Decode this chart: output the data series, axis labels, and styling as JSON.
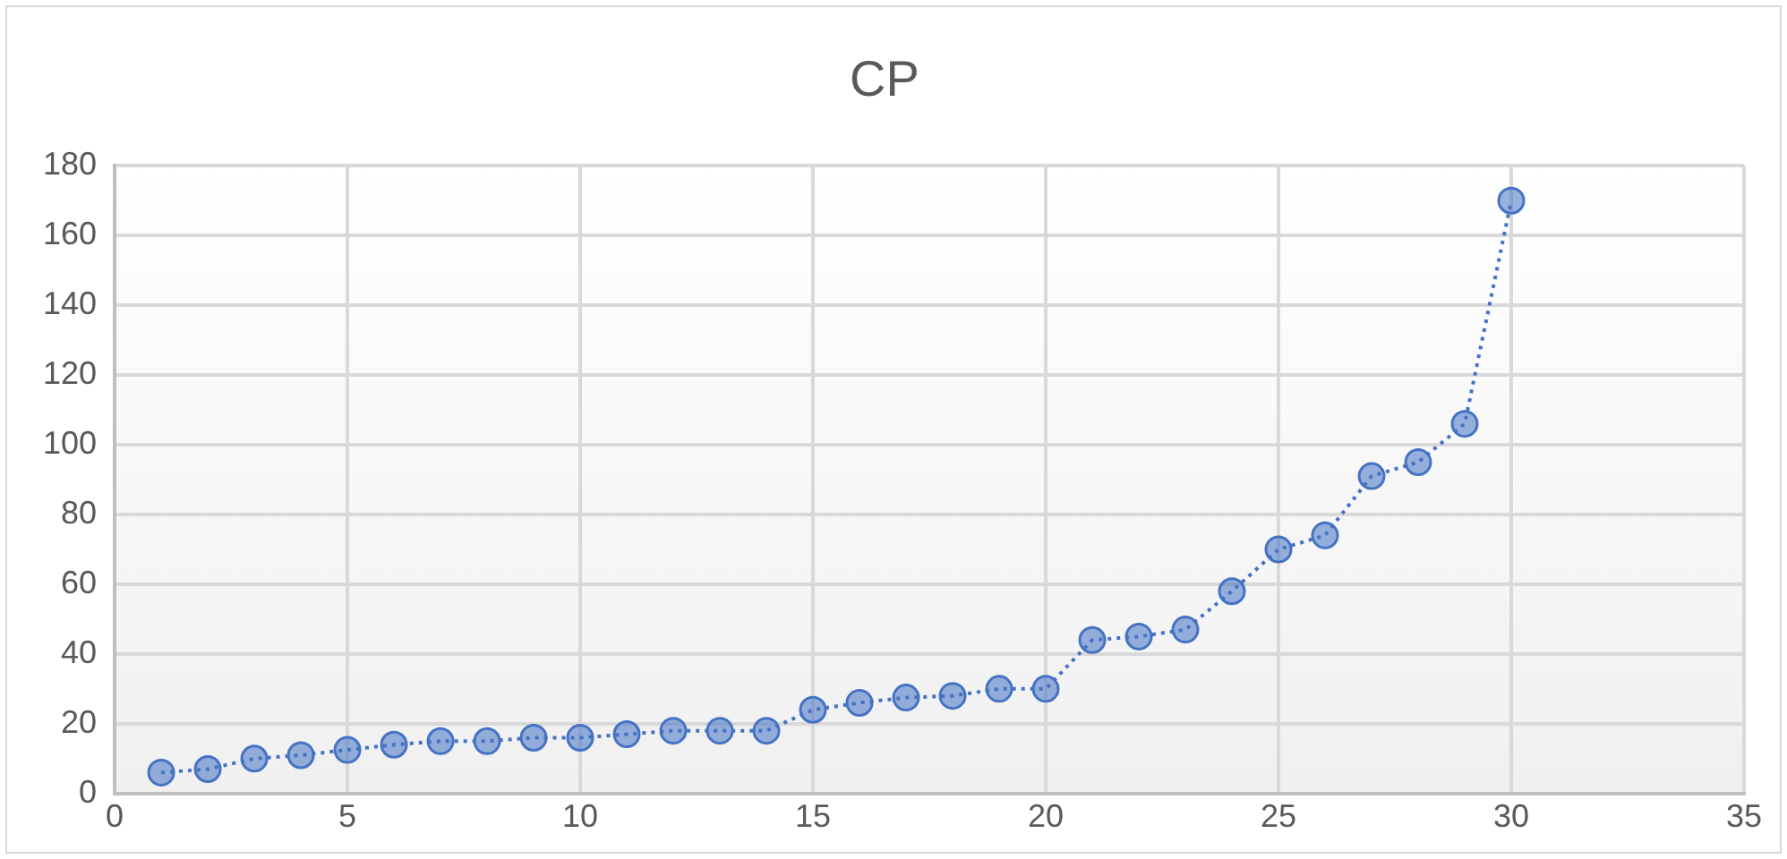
{
  "chart_data": {
    "type": "line",
    "title": "CP",
    "x": [
      1,
      2,
      3,
      4,
      5,
      6,
      7,
      8,
      9,
      10,
      11,
      12,
      13,
      14,
      15,
      16,
      17,
      18,
      19,
      20,
      21,
      22,
      23,
      24,
      25,
      26,
      27,
      28,
      29,
      30
    ],
    "series": [
      {
        "color": "#4472c4",
        "values": [
          6,
          7,
          10,
          11,
          12.5,
          14,
          15,
          15,
          16,
          16,
          17,
          18,
          18,
          18,
          24,
          26,
          27.5,
          28,
          30,
          30,
          44,
          45,
          47,
          58,
          70,
          74,
          91,
          95,
          106,
          170
        ]
      }
    ],
    "xlim": [
      0,
      35
    ],
    "xticks": [
      0,
      5,
      10,
      15,
      20,
      25,
      30,
      35
    ],
    "ylim": [
      0,
      180
    ],
    "yticks": [
      0,
      20,
      40,
      60,
      80,
      100,
      120,
      140,
      160,
      180
    ],
    "grid": true,
    "legend": false,
    "marker": "circle",
    "line_style": "dotted"
  }
}
